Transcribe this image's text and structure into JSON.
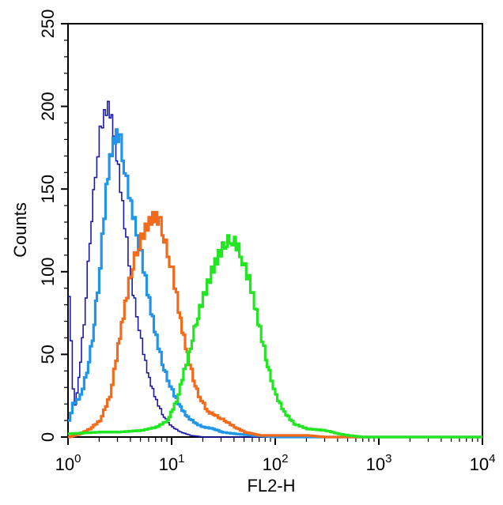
{
  "chart_data": {
    "type": "histogram",
    "title": "",
    "xlabel": "FL2-H",
    "ylabel": "Counts",
    "xscale": "log",
    "xlim": [
      1,
      10000
    ],
    "ylim": [
      0,
      250
    ],
    "x_tick_labels": [
      {
        "base": "10",
        "exp": "0"
      },
      {
        "base": "10",
        "exp": "1"
      },
      {
        "base": "10",
        "exp": "2"
      },
      {
        "base": "10",
        "exp": "3"
      },
      {
        "base": "10",
        "exp": "4"
      }
    ],
    "y_tick_labels": [
      "0",
      "50",
      "100",
      "150",
      "200",
      "250"
    ],
    "legend": "none",
    "grid": false,
    "series": [
      {
        "color": "#1a1aa8",
        "points": [
          [
            1.0,
            85
          ],
          [
            1.05,
            60
          ],
          [
            1.1,
            30
          ],
          [
            1.15,
            20
          ],
          [
            1.25,
            35
          ],
          [
            1.4,
            70
          ],
          [
            1.6,
            120
          ],
          [
            1.8,
            160
          ],
          [
            2.0,
            185
          ],
          [
            2.2,
            195
          ],
          [
            2.4,
            200
          ],
          [
            2.6,
            192
          ],
          [
            2.8,
            178
          ],
          [
            3.0,
            162
          ],
          [
            3.3,
            140
          ],
          [
            3.6,
            118
          ],
          [
            4.0,
            95
          ],
          [
            4.5,
            75
          ],
          [
            5.0,
            58
          ],
          [
            5.5,
            45
          ],
          [
            6.0,
            35
          ],
          [
            7.0,
            22
          ],
          [
            8.0,
            14
          ],
          [
            9.0,
            9
          ],
          [
            10.0,
            6
          ],
          [
            12.0,
            3
          ],
          [
            15.0,
            1
          ],
          [
            20.0,
            0
          ],
          [
            30.0,
            0
          ],
          [
            10000,
            0
          ]
        ]
      },
      {
        "color": "#2196e8",
        "points": [
          [
            1.0,
            10
          ],
          [
            1.1,
            20
          ],
          [
            1.2,
            22
          ],
          [
            1.3,
            25
          ],
          [
            1.5,
            40
          ],
          [
            1.7,
            60
          ],
          [
            1.9,
            90
          ],
          [
            2.1,
            120
          ],
          [
            2.3,
            150
          ],
          [
            2.5,
            168
          ],
          [
            2.7,
            178
          ],
          [
            2.9,
            183
          ],
          [
            3.1,
            180
          ],
          [
            3.3,
            170
          ],
          [
            3.6,
            155
          ],
          [
            4.0,
            140
          ],
          [
            4.5,
            125
          ],
          [
            5.0,
            110
          ],
          [
            5.5,
            95
          ],
          [
            6.0,
            82
          ],
          [
            7.0,
            60
          ],
          [
            8.0,
            45
          ],
          [
            9.0,
            35
          ],
          [
            10.0,
            28
          ],
          [
            12.0,
            18
          ],
          [
            14.0,
            12
          ],
          [
            17.0,
            8
          ],
          [
            20.0,
            6
          ],
          [
            25.0,
            5
          ],
          [
            30.0,
            3
          ],
          [
            40.0,
            2
          ],
          [
            60.0,
            1
          ],
          [
            100.0,
            0
          ],
          [
            10000,
            0
          ]
        ]
      },
      {
        "color": "#f26a1b",
        "points": [
          [
            1.0,
            0
          ],
          [
            1.3,
            2
          ],
          [
            1.6,
            5
          ],
          [
            2.0,
            10
          ],
          [
            2.5,
            25
          ],
          [
            3.0,
            55
          ],
          [
            3.5,
            80
          ],
          [
            4.0,
            100
          ],
          [
            4.5,
            113
          ],
          [
            5.0,
            120
          ],
          [
            5.5,
            126
          ],
          [
            6.0,
            130
          ],
          [
            6.5,
            133
          ],
          [
            7.0,
            133
          ],
          [
            7.5,
            130
          ],
          [
            8.0,
            125
          ],
          [
            9.0,
            112
          ],
          [
            10.0,
            100
          ],
          [
            11.0,
            85
          ],
          [
            12.0,
            70
          ],
          [
            14.0,
            50
          ],
          [
            16.0,
            35
          ],
          [
            18.0,
            25
          ],
          [
            20.0,
            20
          ],
          [
            22.0,
            15
          ],
          [
            25.0,
            14
          ],
          [
            28.0,
            12
          ],
          [
            32.0,
            10
          ],
          [
            40.0,
            6
          ],
          [
            50.0,
            3
          ],
          [
            70.0,
            1
          ],
          [
            100.0,
            1
          ],
          [
            200.0,
            1
          ],
          [
            300.0,
            0
          ],
          [
            10000,
            0
          ]
        ]
      },
      {
        "color": "#22e622",
        "points": [
          [
            1.0,
            2
          ],
          [
            2.0,
            3
          ],
          [
            3.0,
            3
          ],
          [
            5.0,
            4
          ],
          [
            7.0,
            6
          ],
          [
            9.0,
            10
          ],
          [
            11.0,
            22
          ],
          [
            13.0,
            40
          ],
          [
            15.0,
            55
          ],
          [
            17.0,
            70
          ],
          [
            20.0,
            85
          ],
          [
            24.0,
            100
          ],
          [
            28.0,
            110
          ],
          [
            32.0,
            117
          ],
          [
            36.0,
            120
          ],
          [
            40.0,
            118
          ],
          [
            45.0,
            112
          ],
          [
            50.0,
            102
          ],
          [
            55.0,
            95
          ],
          [
            60.0,
            85
          ],
          [
            70.0,
            65
          ],
          [
            80.0,
            48
          ],
          [
            90.0,
            35
          ],
          [
            100.0,
            25
          ],
          [
            120.0,
            15
          ],
          [
            150.0,
            8
          ],
          [
            200.0,
            5
          ],
          [
            300.0,
            4
          ],
          [
            400.0,
            2
          ],
          [
            500.0,
            1
          ],
          [
            700.0,
            0
          ],
          [
            10000,
            0
          ]
        ]
      }
    ]
  }
}
